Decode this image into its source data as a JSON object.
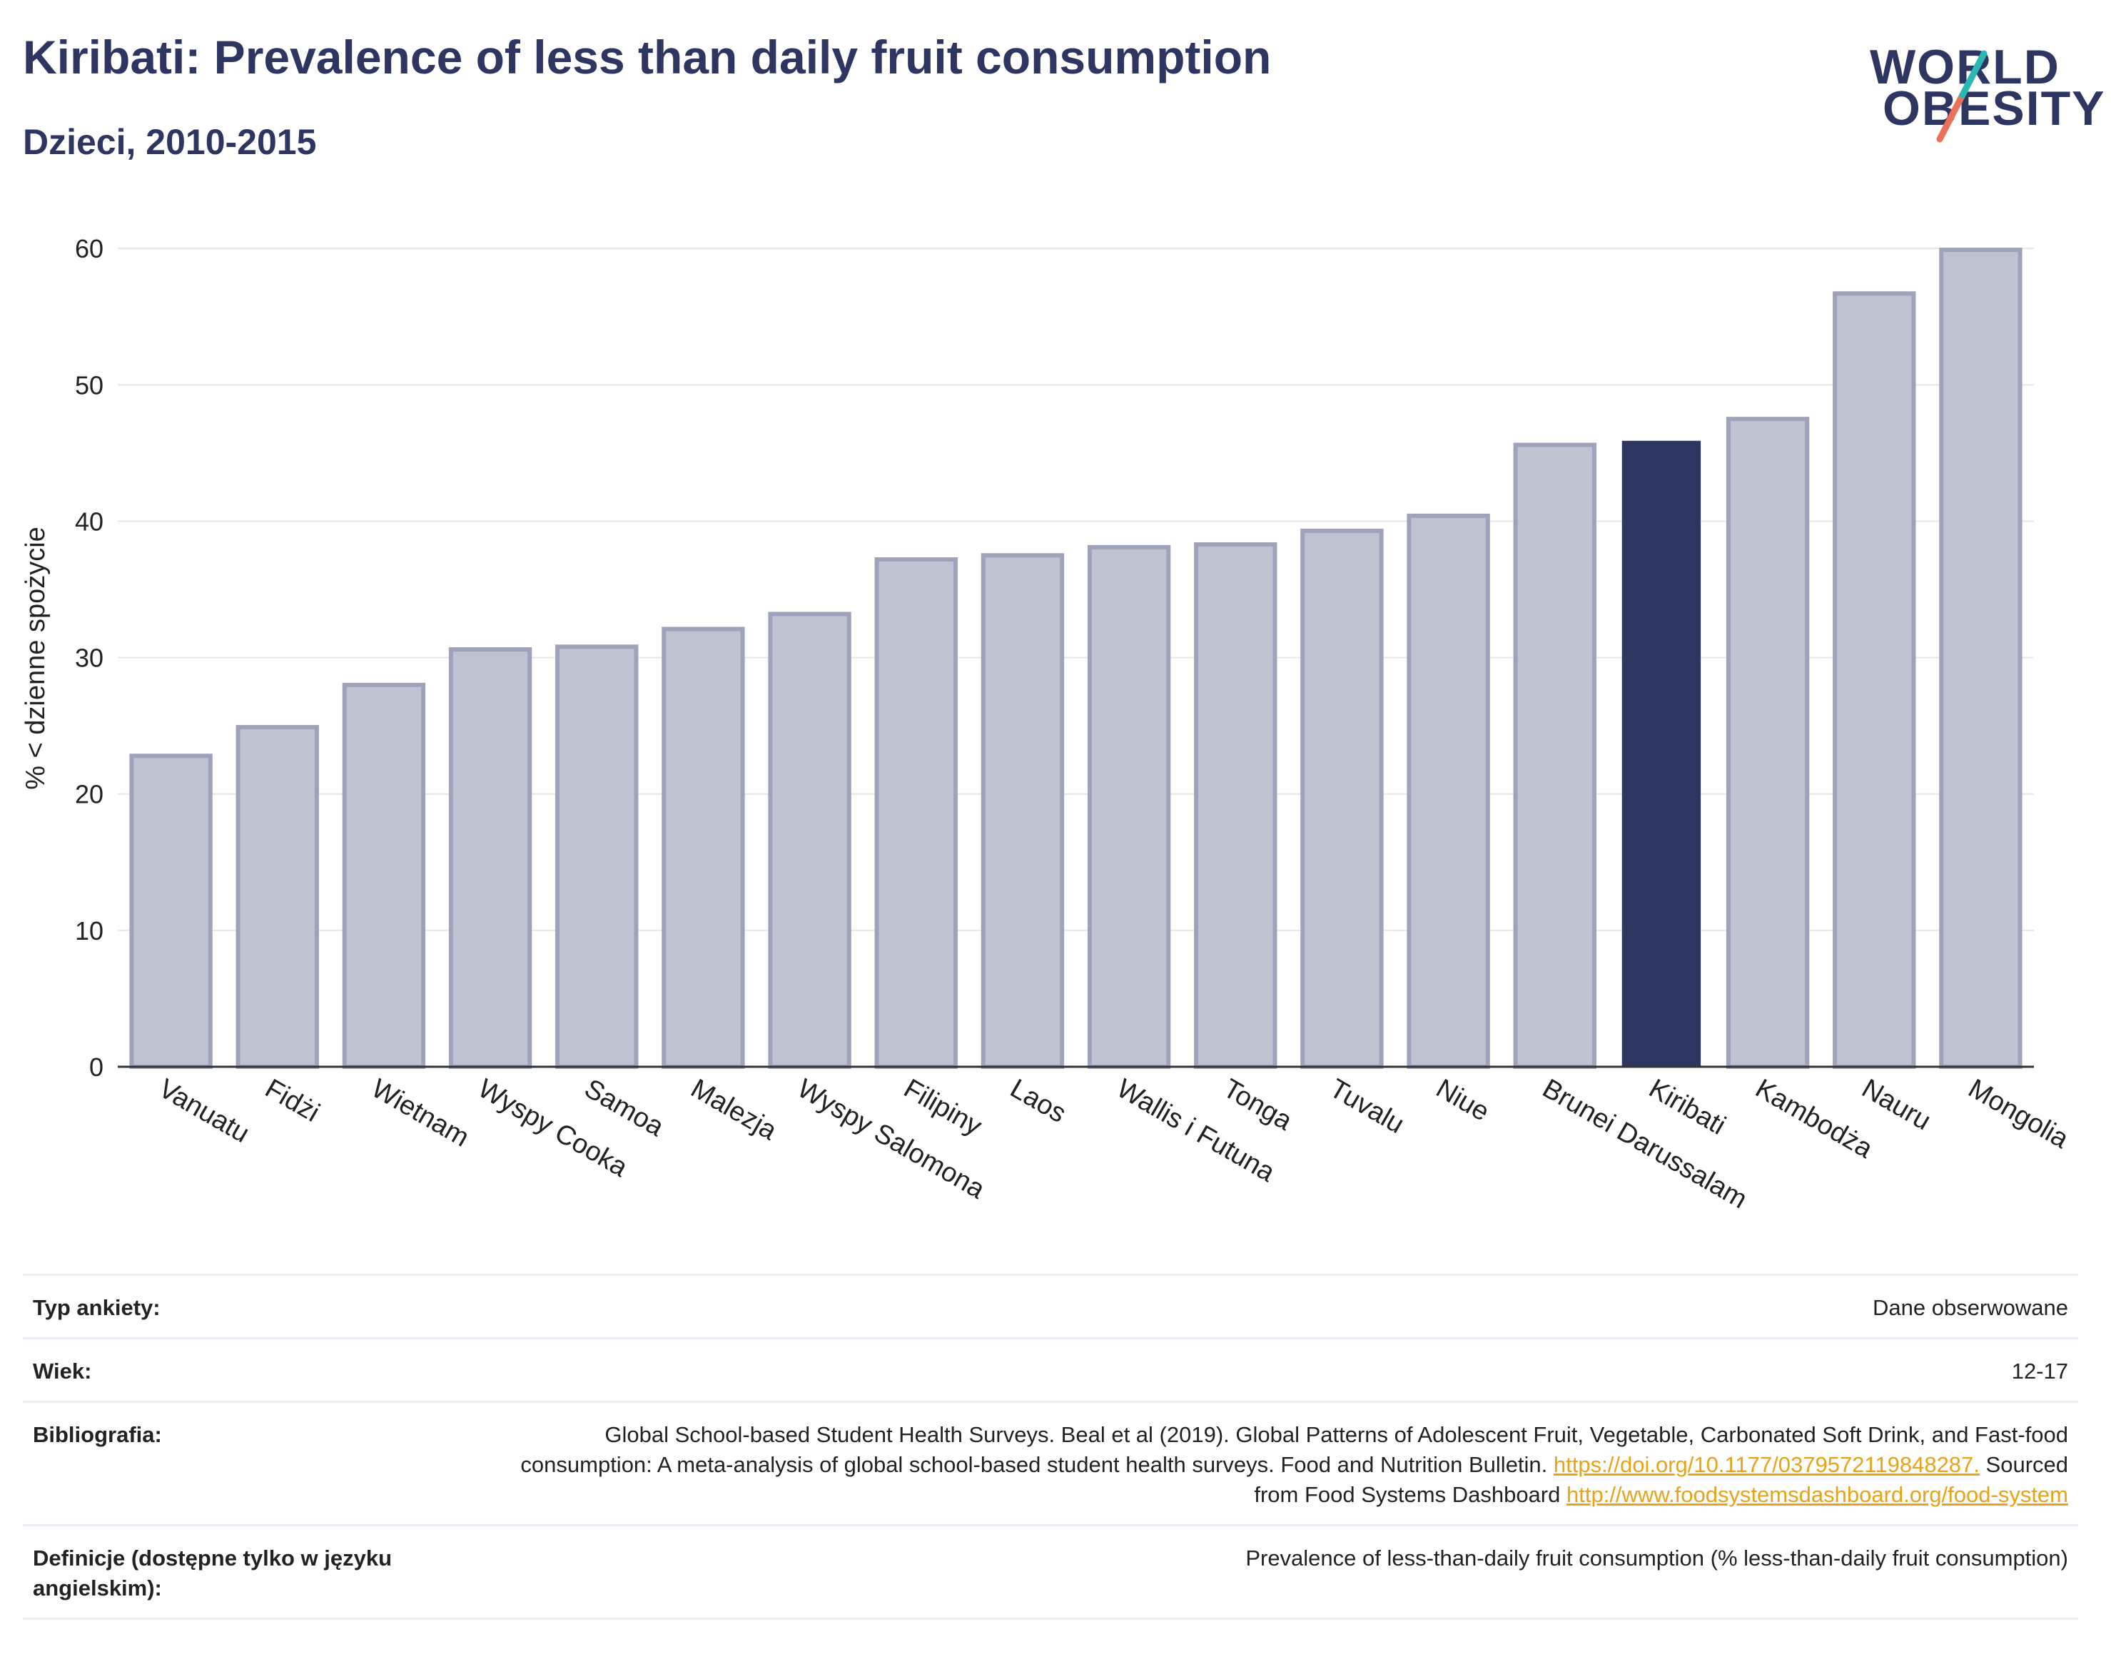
{
  "header": {
    "title": "Kiribati: Prevalence of less than daily fruit consumption",
    "subtitle": "Dzieci, 2010-2015"
  },
  "logo": {
    "line1": "WORLD",
    "line2": "OBESITY"
  },
  "chart_data": {
    "type": "bar",
    "title": "",
    "ylabel": "% < dzienne spożycie",
    "xlabel": "",
    "ylim": [
      0,
      62
    ],
    "yticks": [
      0,
      10,
      20,
      30,
      40,
      50,
      60
    ],
    "grid": true,
    "highlight": "Kiribati",
    "colors": {
      "bar": "#bfc2d0",
      "bar_outline": "#9ea3bb",
      "highlight": "#2d3561"
    },
    "categories": [
      "Vanuatu",
      "Fidżi",
      "Wietnam",
      "Wyspy Cooka",
      "Samoa",
      "Malezja",
      "Wyspy Salomona",
      "Filipiny",
      "Laos",
      "Wallis i Futuna",
      "Tonga",
      "Tuvalu",
      "Niue",
      "Brunei Darussalam",
      "Kiribati",
      "Kambodża",
      "Nauru",
      "Mongolia"
    ],
    "values": [
      22.8,
      24.9,
      28.0,
      30.6,
      30.8,
      32.1,
      33.2,
      37.2,
      37.5,
      38.1,
      38.3,
      39.3,
      40.4,
      45.6,
      45.9,
      47.5,
      56.7,
      59.9
    ]
  },
  "meta": {
    "survey_type": {
      "label": "Typ ankiety:",
      "value": "Dane obserwowane"
    },
    "age": {
      "label": "Wiek:",
      "value": "12-17"
    },
    "bibliography": {
      "label": "Bibliografia:",
      "text1": "Global School-based Student Health Surveys. Beal et al (2019). Global Patterns of Adolescent Fruit, Vegetable, Carbonated Soft Drink, and Fast-food consumption: A meta-analysis of global school-based student health surveys. Food and Nutrition Bulletin.",
      "link1": "https://doi.org/10.1177/0379572119848287.",
      "text2": "Sourced from Food Systems Dashboard",
      "link2": "http://www.foodsystemsdashboard.org/food-system"
    },
    "definition": {
      "label": "Definicje (dostępne tylko w języku angielskim):",
      "value": "Prevalence of less-than-daily fruit consumption (% less-than-daily fruit consumption)"
    }
  }
}
